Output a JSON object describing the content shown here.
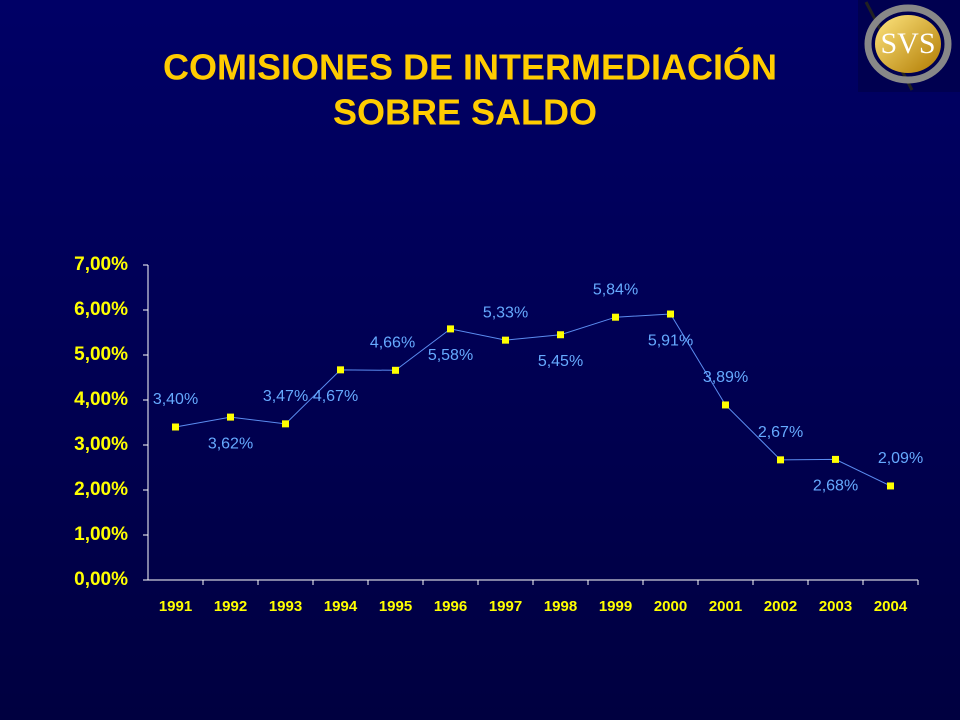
{
  "logo": "SVS",
  "chart_data": {
    "type": "line",
    "title": [
      "COMISIONES  DE INTERMEDIACIÓN",
      "SOBRE SALDO"
    ],
    "categories": [
      "1991",
      "1992",
      "1993",
      "1994",
      "1995",
      "1996",
      "1997",
      "1998",
      "1999",
      "2000",
      "2001",
      "2002",
      "2003",
      "2004"
    ],
    "series": [
      {
        "color": "#5b8cf0",
        "marker_color": "#ffff00",
        "values": [
          3.4,
          3.62,
          3.47,
          4.67,
          4.66,
          5.58,
          5.33,
          5.45,
          5.84,
          5.91,
          3.89,
          2.67,
          2.68,
          2.09
        ],
        "value_labels": [
          "3,40%",
          "3,62%",
          "3,47%",
          "4,67%",
          "4,66%",
          "5,58%",
          "5,33%",
          "5,45%",
          "5,84%",
          "5,91%",
          "3,89%",
          "2,67%",
          "2,68%",
          "2,09%"
        ]
      }
    ],
    "ylim": [
      0,
      7
    ],
    "yticks": [
      {
        "value": 0,
        "label": "0,00%"
      },
      {
        "value": 1,
        "label": "1,00%"
      },
      {
        "value": 2,
        "label": "2,00%"
      },
      {
        "value": 3,
        "label": "3,00%"
      },
      {
        "value": 4,
        "label": "4,00%"
      },
      {
        "value": 5,
        "label": "5,00%"
      },
      {
        "value": 6,
        "label": "6,00%"
      },
      {
        "value": 7,
        "label": "7,00%"
      }
    ],
    "grid": false
  }
}
